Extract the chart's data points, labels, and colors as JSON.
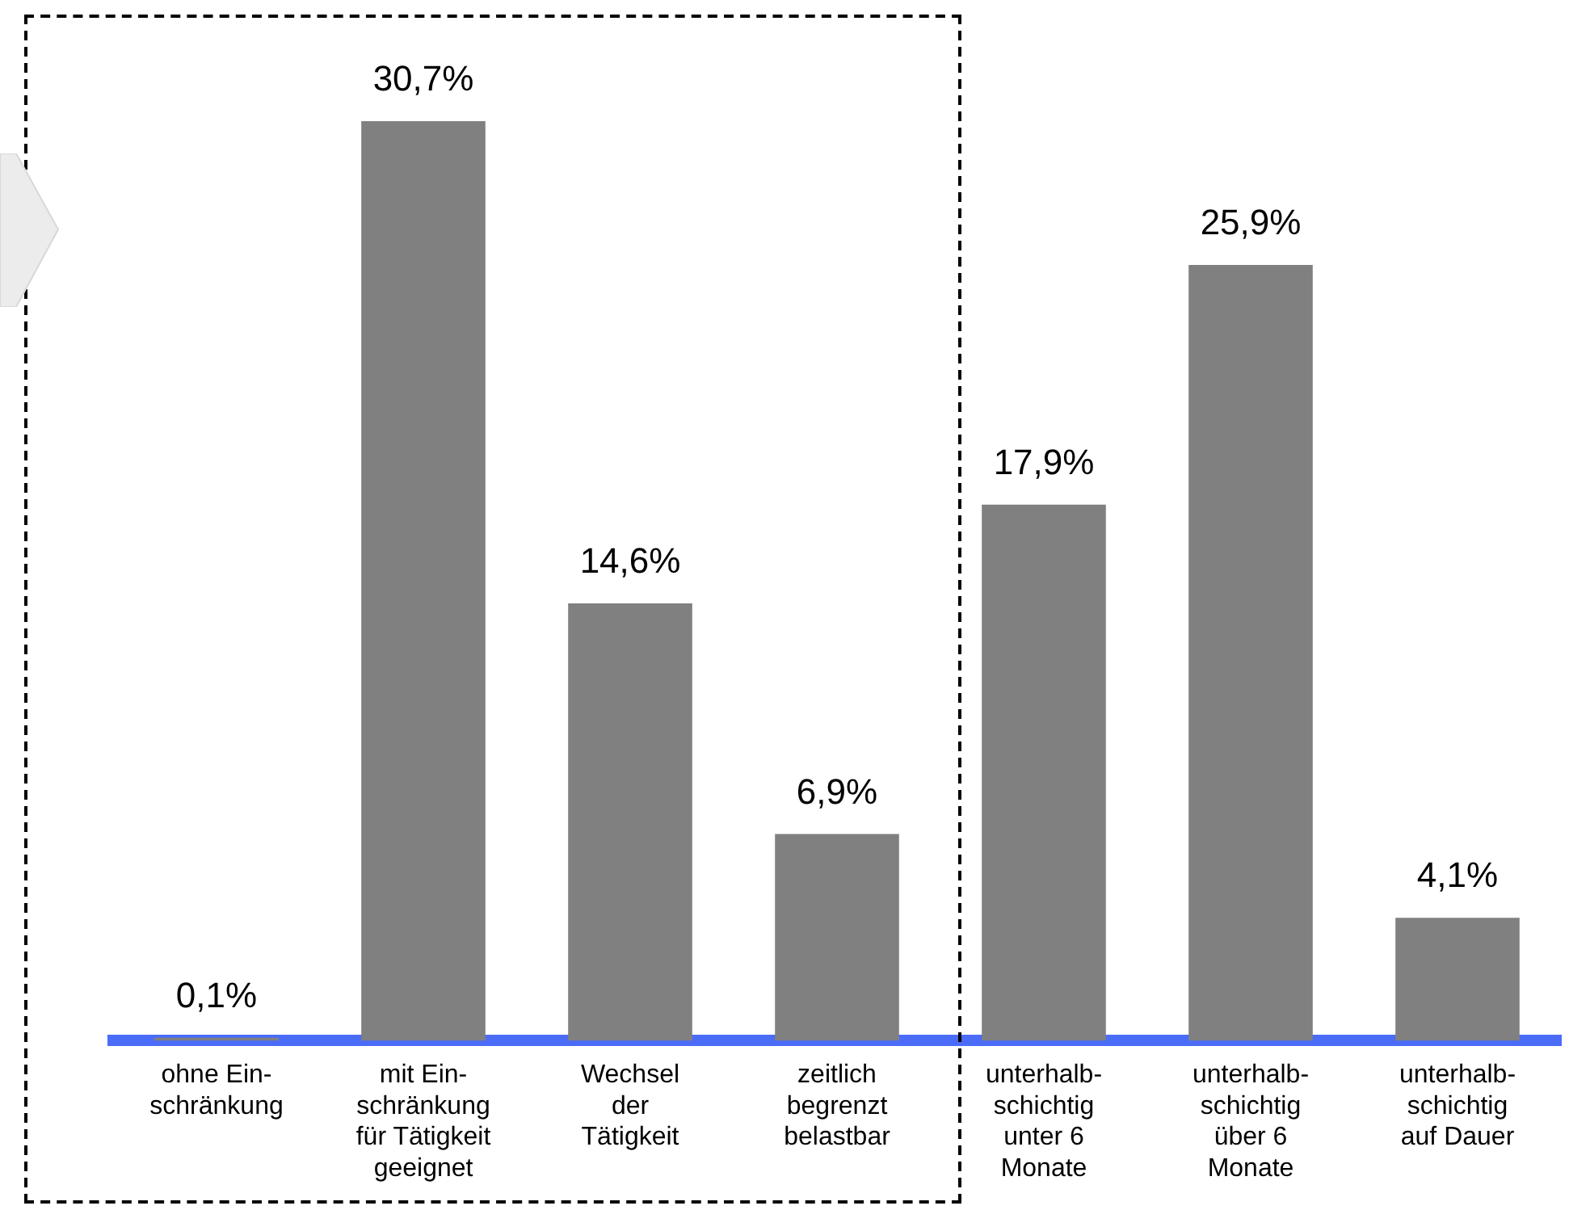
{
  "chart_data": {
    "type": "bar",
    "categories": [
      "ohne Ein-\nschränkung",
      "mit Ein-\nschränkung\nfür Tätigkeit\ngeeignet",
      "Wechsel\nder\nTätigkeit",
      "zeitlich\nbegrenzt\nbelastbar",
      "unterhalb-\nschichtig\nunter 6\nMonate",
      "unterhalb-\nschichtig\nüber 6\nMonate",
      "unterhalb-\nschichtig\nauf Dauer"
    ],
    "values": [
      0.1,
      30.7,
      14.6,
      6.9,
      17.9,
      25.9,
      4.1
    ],
    "value_labels": [
      "0,1%",
      "30,7%",
      "14,6%",
      "6,9%",
      "17,9%",
      "25,9%",
      "4,1%"
    ],
    "color": "#808080",
    "tick_labels": "x",
    "grid": false,
    "legend": false
  }
}
